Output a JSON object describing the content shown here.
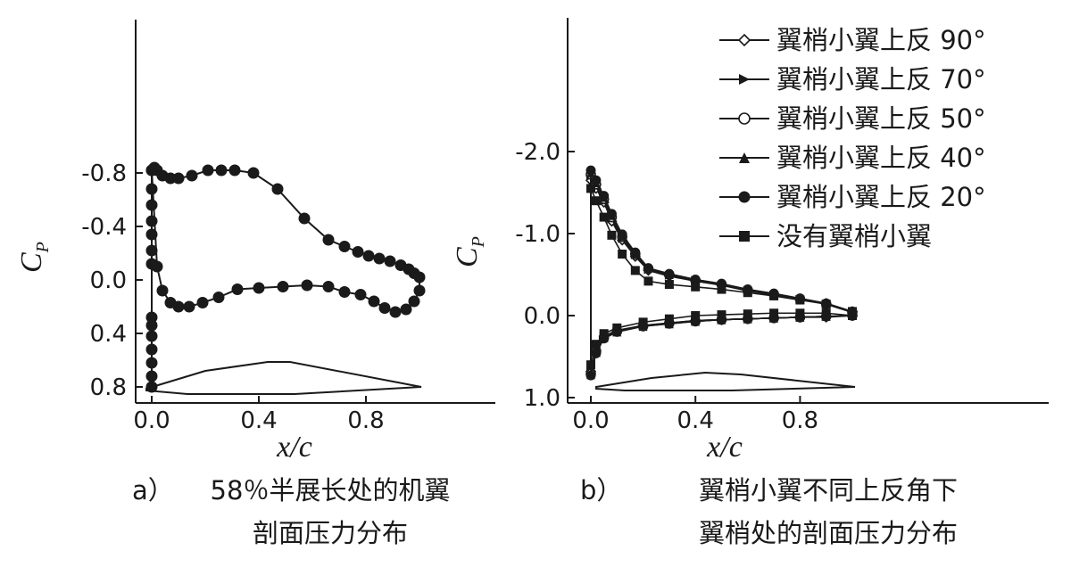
{
  "chart_data": [
    {
      "type": "line",
      "panel_label": "a）",
      "caption_lines": [
        "58％半展长处的机翼",
        "剖面压力分布"
      ],
      "xlabel": "x/c",
      "ylabel_main": "C",
      "ylabel_sub": "P",
      "xlim": [
        0.0,
        1.05
      ],
      "ylim": [
        0.9,
        -1.25
      ],
      "y_inverted": true,
      "xticks": [
        "0.0",
        "0.4",
        "0.8"
      ],
      "yticks": [
        "-0.8",
        "-0.4",
        "0.0",
        "0.4",
        "0.8"
      ],
      "series": [
        {
          "marker": "filled-circle",
          "upper_x": [
            0.0,
            0.01,
            0.02,
            0.04,
            0.07,
            0.1,
            0.15,
            0.21,
            0.26,
            0.31,
            0.38,
            0.47,
            0.57,
            0.66,
            0.72,
            0.77,
            0.81,
            0.85,
            0.89,
            0.93,
            0.96,
            0.98,
            1.0
          ],
          "upper_y": [
            -0.82,
            -0.84,
            -0.82,
            -0.78,
            -0.76,
            -0.76,
            -0.78,
            -0.82,
            -0.82,
            -0.82,
            -0.8,
            -0.68,
            -0.46,
            -0.3,
            -0.25,
            -0.21,
            -0.18,
            -0.16,
            -0.14,
            -0.11,
            -0.08,
            -0.05,
            -0.02
          ],
          "lower_x": [
            0.0,
            0.02,
            0.04,
            0.07,
            0.1,
            0.14,
            0.19,
            0.25,
            0.32,
            0.4,
            0.49,
            0.58,
            0.66,
            0.72,
            0.78,
            0.83,
            0.87,
            0.91,
            0.95,
            0.98,
            1.0
          ],
          "lower_y": [
            -0.82,
            -0.1,
            0.08,
            0.17,
            0.2,
            0.2,
            0.17,
            0.13,
            0.07,
            0.06,
            0.05,
            0.04,
            0.05,
            0.09,
            0.11,
            0.16,
            0.21,
            0.24,
            0.22,
            0.16,
            0.08
          ],
          "le_drop_y": [
            -0.68,
            -0.56,
            -0.44,
            -0.34,
            -0.22,
            -0.12,
            0.28,
            0.34,
            0.42,
            0.52,
            0.62,
            0.72,
            0.8
          ]
        }
      ]
    },
    {
      "type": "line",
      "panel_label": "b）",
      "caption_lines": [
        "翼梢小翼不同上反角下",
        "翼梢处的剖面压力分布"
      ],
      "xlabel": "x/c",
      "ylabel_main": "C",
      "ylabel_sub": "P",
      "xlim": [
        0.0,
        1.05
      ],
      "ylim": [
        1.0,
        -2.1
      ],
      "y_inverted": true,
      "xticks": [
        "0.0",
        "0.4",
        "0.8"
      ],
      "yticks": [
        "-2.0",
        "-1.0",
        "0.0",
        "1.0"
      ],
      "legend_position": "top-right",
      "series": [
        {
          "name": "翼梢小翼上反 90°",
          "marker": "open-diamond",
          "upper_x": [
            0.0,
            0.02,
            0.05,
            0.08,
            0.12,
            0.17,
            0.22,
            0.3,
            0.4,
            0.5,
            0.6,
            0.7,
            0.8,
            0.9,
            1.0
          ],
          "upper_y": [
            -1.65,
            -1.55,
            -1.38,
            -1.15,
            -0.92,
            -0.72,
            -0.55,
            -0.48,
            -0.42,
            -0.37,
            -0.3,
            -0.25,
            -0.2,
            -0.15,
            -0.05
          ],
          "lower_x": [
            0.0,
            0.02,
            0.05,
            0.1,
            0.2,
            0.3,
            0.4,
            0.5,
            0.6,
            0.7,
            0.8,
            0.9,
            1.0
          ],
          "lower_y": [
            0.68,
            0.42,
            0.25,
            0.18,
            0.12,
            0.09,
            0.06,
            0.05,
            0.04,
            0.03,
            0.02,
            0.02,
            0.0
          ]
        },
        {
          "name": "翼梢小翼上反 70°",
          "marker": "right-triangle",
          "upper_x": [
            0.0,
            0.02,
            0.05,
            0.08,
            0.12,
            0.17,
            0.22,
            0.3,
            0.4,
            0.5,
            0.6,
            0.7,
            0.8,
            0.9,
            1.0
          ],
          "upper_y": [
            -1.7,
            -1.57,
            -1.4,
            -1.18,
            -0.94,
            -0.74,
            -0.56,
            -0.49,
            -0.43,
            -0.37,
            -0.31,
            -0.25,
            -0.2,
            -0.14,
            -0.04
          ],
          "lower_x": [
            0.0,
            0.02,
            0.05,
            0.1,
            0.2,
            0.3,
            0.4,
            0.5,
            0.6,
            0.7,
            0.8,
            0.9,
            1.0
          ],
          "lower_y": [
            0.7,
            0.43,
            0.26,
            0.19,
            0.12,
            0.09,
            0.06,
            0.05,
            0.04,
            0.03,
            0.02,
            0.01,
            0.0
          ]
        },
        {
          "name": "翼梢小翼上反 50°",
          "marker": "open-circle",
          "upper_x": [
            0.0,
            0.02,
            0.05,
            0.08,
            0.12,
            0.17,
            0.22,
            0.3,
            0.4,
            0.5,
            0.6,
            0.7,
            0.8,
            0.9,
            1.0
          ],
          "upper_y": [
            -1.72,
            -1.6,
            -1.42,
            -1.2,
            -0.96,
            -0.75,
            -0.57,
            -0.5,
            -0.43,
            -0.38,
            -0.31,
            -0.26,
            -0.2,
            -0.14,
            -0.04
          ],
          "lower_x": [
            0.0,
            0.02,
            0.05,
            0.1,
            0.2,
            0.3,
            0.4,
            0.5,
            0.6,
            0.7,
            0.8,
            0.9,
            1.0
          ],
          "lower_y": [
            0.71,
            0.44,
            0.27,
            0.19,
            0.13,
            0.09,
            0.07,
            0.05,
            0.04,
            0.03,
            0.02,
            0.01,
            0.0
          ]
        },
        {
          "name": "翼梢小翼上反 40°",
          "marker": "up-triangle",
          "upper_x": [
            0.0,
            0.02,
            0.05,
            0.08,
            0.12,
            0.17,
            0.22,
            0.3,
            0.4,
            0.5,
            0.6,
            0.7,
            0.8,
            0.9,
            1.0
          ],
          "upper_y": [
            -1.74,
            -1.62,
            -1.44,
            -1.22,
            -0.97,
            -0.76,
            -0.58,
            -0.5,
            -0.44,
            -0.38,
            -0.32,
            -0.26,
            -0.2,
            -0.14,
            -0.04
          ],
          "lower_x": [
            0.0,
            0.02,
            0.05,
            0.1,
            0.2,
            0.3,
            0.4,
            0.5,
            0.6,
            0.7,
            0.8,
            0.9,
            1.0
          ],
          "lower_y": [
            0.72,
            0.45,
            0.27,
            0.2,
            0.13,
            0.1,
            0.07,
            0.05,
            0.04,
            0.03,
            0.02,
            0.01,
            0.0
          ]
        },
        {
          "name": "翼梢小翼上反 20°",
          "marker": "filled-circle",
          "upper_x": [
            0.0,
            0.02,
            0.05,
            0.08,
            0.12,
            0.17,
            0.22,
            0.3,
            0.4,
            0.5,
            0.6,
            0.7,
            0.8,
            0.9,
            1.0
          ],
          "upper_y": [
            -1.77,
            -1.65,
            -1.46,
            -1.24,
            -0.99,
            -0.77,
            -0.58,
            -0.51,
            -0.44,
            -0.39,
            -0.32,
            -0.27,
            -0.21,
            -0.15,
            -0.05
          ],
          "lower_x": [
            0.0,
            0.02,
            0.05,
            0.1,
            0.2,
            0.3,
            0.4,
            0.5,
            0.6,
            0.7,
            0.8,
            0.9,
            1.0
          ],
          "lower_y": [
            0.73,
            0.46,
            0.28,
            0.2,
            0.13,
            0.1,
            0.07,
            0.05,
            0.04,
            0.03,
            0.02,
            0.01,
            0.0
          ]
        },
        {
          "name": "没有翼梢小翼",
          "marker": "filled-square",
          "upper_x": [
            0.0,
            0.02,
            0.05,
            0.08,
            0.12,
            0.17,
            0.22,
            0.3,
            0.4,
            0.5,
            0.6,
            0.7,
            0.8,
            0.9,
            1.0
          ],
          "upper_y": [
            -1.55,
            -1.4,
            -1.2,
            -0.98,
            -0.75,
            -0.55,
            -0.42,
            -0.38,
            -0.35,
            -0.32,
            -0.28,
            -0.24,
            -0.19,
            -0.14,
            -0.05
          ],
          "lower_x": [
            0.0,
            0.02,
            0.05,
            0.1,
            0.2,
            0.3,
            0.4,
            0.5,
            0.6,
            0.7,
            0.8,
            0.9,
            1.0
          ],
          "lower_y": [
            0.6,
            0.35,
            0.22,
            0.15,
            0.08,
            0.04,
            0.0,
            -0.01,
            -0.02,
            -0.03,
            -0.03,
            -0.03,
            0.0
          ]
        }
      ]
    }
  ]
}
